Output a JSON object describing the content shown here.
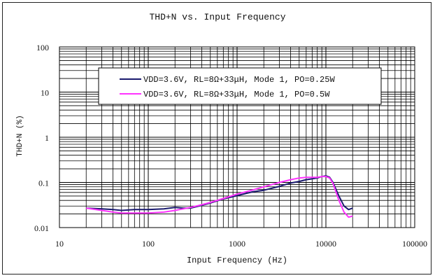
{
  "chart_data": {
    "type": "line",
    "title": "THD+N vs. Input Frequency",
    "xlabel": "Input Frequency (Hz)",
    "ylabel": "THD+N (%)",
    "x_scale": "log",
    "y_scale": "log",
    "xlim": [
      10,
      100000
    ],
    "ylim": [
      0.01,
      100
    ],
    "x_ticks": [
      "10",
      "100",
      "1000",
      "10000",
      "100000"
    ],
    "y_ticks": [
      "100",
      "10",
      "1",
      "0.1",
      "0.01"
    ],
    "grid": true,
    "legend_position": "top-right",
    "colors": {
      "series1": "#1a1a6e",
      "series2": "#ff33ff"
    },
    "series": [
      {
        "name": "VDD=3.6V, RL=8Ω+33μH, Mode 1, PO=0.25W",
        "x": [
          20,
          30,
          40,
          50,
          70,
          100,
          150,
          200,
          250,
          300,
          400,
          500,
          700,
          1000,
          1500,
          2000,
          3000,
          4000,
          5000,
          6000,
          7000,
          8000,
          9000,
          10000,
          11000,
          12000,
          14000,
          16000,
          18000,
          20000
        ],
        "y": [
          0.027,
          0.026,
          0.025,
          0.024,
          0.025,
          0.025,
          0.026,
          0.028,
          0.027,
          0.027,
          0.031,
          0.035,
          0.043,
          0.051,
          0.062,
          0.067,
          0.082,
          0.097,
          0.105,
          0.115,
          0.12,
          0.125,
          0.135,
          0.14,
          0.13,
          0.1,
          0.05,
          0.03,
          0.025,
          0.027
        ]
      },
      {
        "name": "VDD=3.6V, RL=8Ω+33μH, Mode 1, PO=0.5W",
        "x": [
          20,
          30,
          40,
          50,
          70,
          100,
          150,
          200,
          250,
          300,
          400,
          500,
          700,
          1000,
          1500,
          2000,
          3000,
          4000,
          5000,
          6000,
          7000,
          8000,
          9000,
          10000,
          11000,
          12000,
          14000,
          16000,
          18000,
          20000
        ],
        "y": [
          0.027,
          0.024,
          0.022,
          0.021,
          0.021,
          0.021,
          0.022,
          0.024,
          0.026,
          0.028,
          0.032,
          0.036,
          0.044,
          0.055,
          0.068,
          0.08,
          0.1,
          0.115,
          0.125,
          0.13,
          0.13,
          0.13,
          0.135,
          0.135,
          0.125,
          0.095,
          0.04,
          0.022,
          0.017,
          0.018
        ]
      }
    ]
  }
}
